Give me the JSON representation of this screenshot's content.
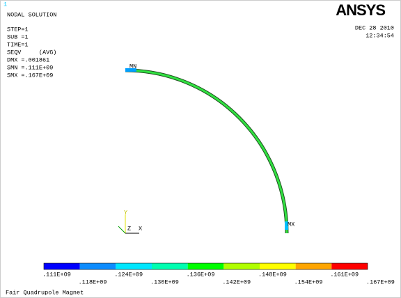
{
  "header": {
    "window_number": "1",
    "title": "NODAL SOLUTION",
    "info": [
      "STEP=1",
      "SUB =1",
      "TIME=1",
      "SEQV     (AVG)",
      "DMX =.001861",
      "SMN =.111E+09",
      "SMX =.167E+09"
    ],
    "logo": "ANSYS",
    "date": "DEC 28 2010",
    "time": "12:34:54"
  },
  "model": {
    "min_label": "MN",
    "max_label": "MX",
    "axis_y": "Y",
    "axis_z": "Z",
    "axis_x": "X"
  },
  "legend": {
    "colors": [
      "#0000ff",
      "#0d8cff",
      "#00e6ff",
      "#00ffb0",
      "#00ff00",
      "#b0ff00",
      "#ffff00",
      "#ffa500",
      "#ff0000"
    ],
    "labels": [
      ".111E+09",
      ".118E+09",
      ".124E+09",
      ".130E+09",
      ".136E+09",
      ".142E+09",
      ".148E+09",
      ".154E+09",
      ".161E+09",
      ".167E+09"
    ]
  },
  "footer": "Fair Quadrupole Magnet"
}
